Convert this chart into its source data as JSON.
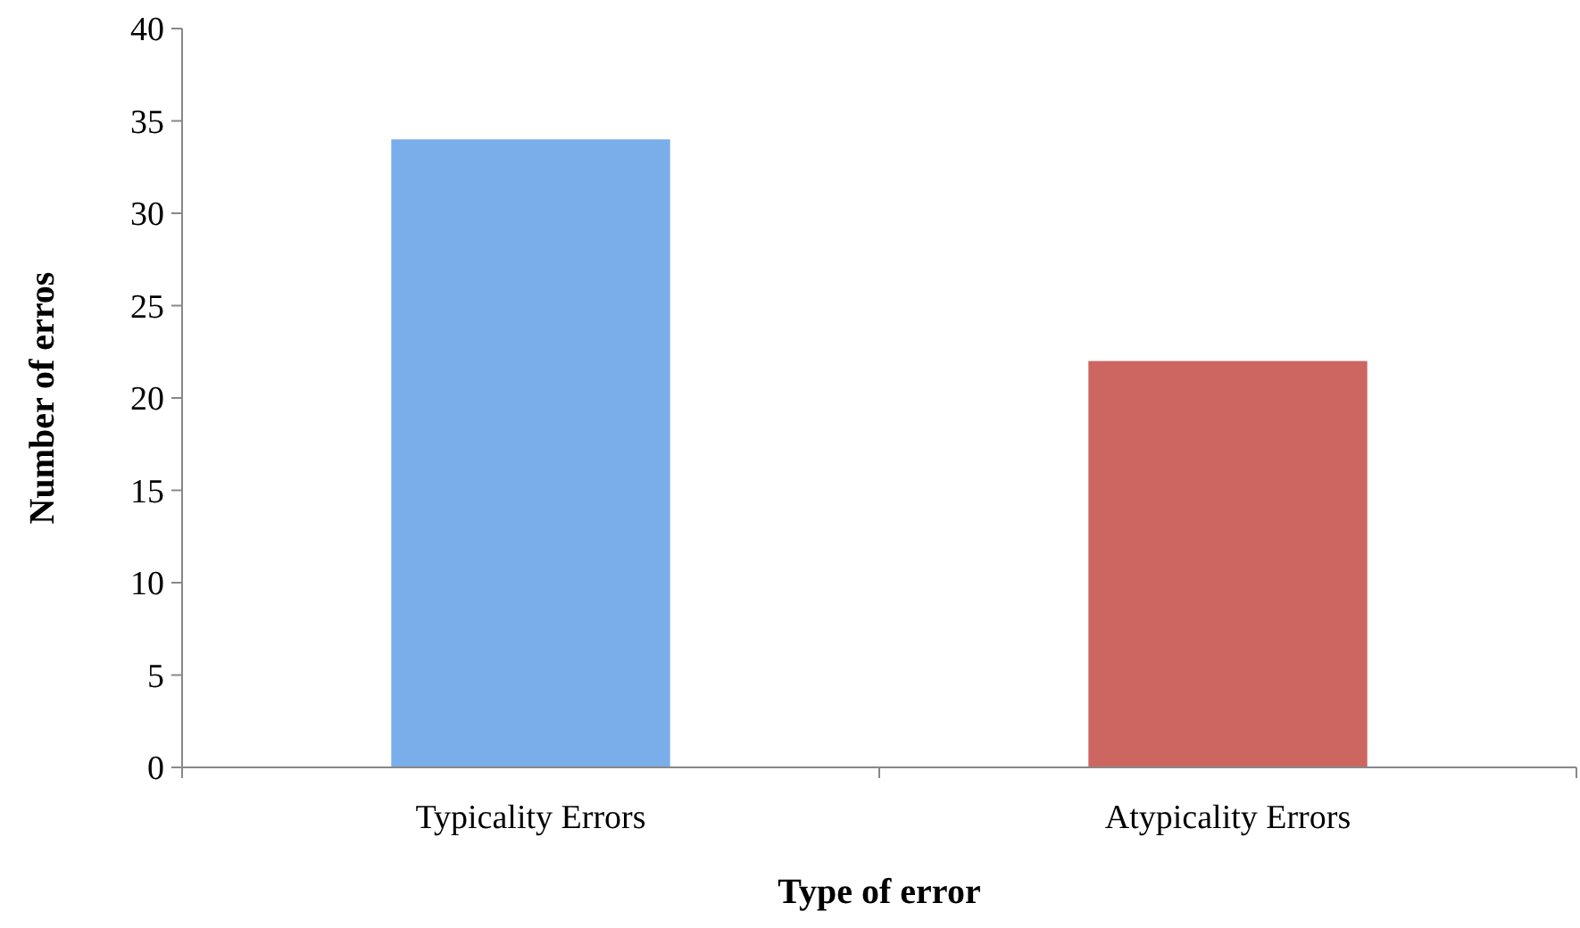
{
  "chart_data": {
    "type": "bar",
    "xlabel": "Type of error",
    "ylabel": "Number of erros",
    "categories": [
      "Typicality Errors",
      "Atypicality Errors"
    ],
    "values": [
      34,
      22
    ],
    "colors": [
      "#7aaeea",
      "#cd6660"
    ],
    "ylim": [
      0,
      40
    ],
    "yticks": [
      0,
      5,
      10,
      15,
      20,
      25,
      30,
      35,
      40
    ],
    "grid": false
  }
}
